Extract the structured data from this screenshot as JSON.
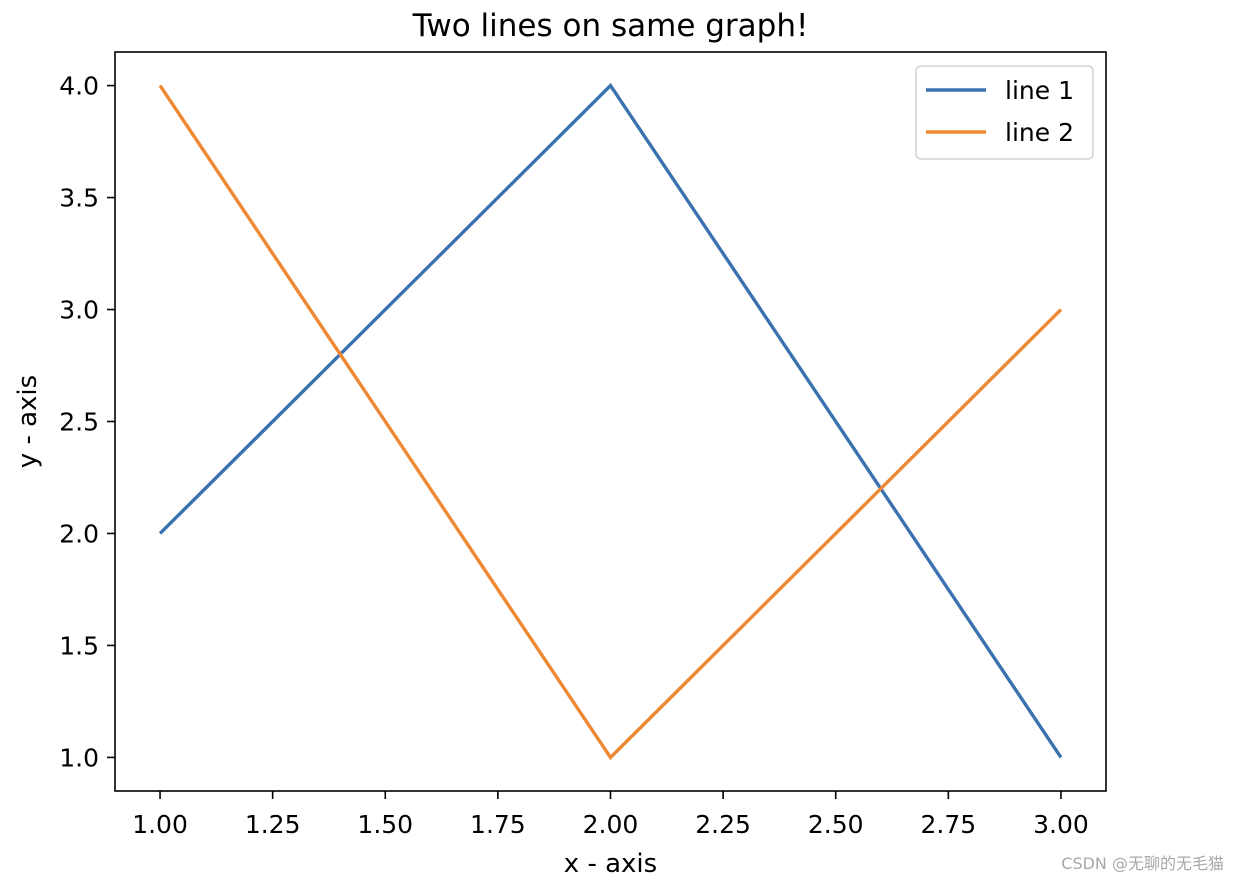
{
  "chart_data": {
    "type": "line",
    "title": "Two lines on same graph!",
    "xlabel": "x - axis",
    "ylabel": "y - axis",
    "xlim": [
      0.9,
      3.1
    ],
    "ylim": [
      0.85,
      4.15
    ],
    "x_ticks": [
      1.0,
      1.25,
      1.5,
      1.75,
      2.0,
      2.25,
      2.5,
      2.75,
      3.0
    ],
    "x_tick_labels": [
      "1.00",
      "1.25",
      "1.50",
      "1.75",
      "2.00",
      "2.25",
      "2.50",
      "2.75",
      "3.00"
    ],
    "y_ticks": [
      1.0,
      1.5,
      2.0,
      2.5,
      3.0,
      3.5,
      4.0
    ],
    "y_tick_labels": [
      "1.0",
      "1.5",
      "2.0",
      "2.5",
      "3.0",
      "3.5",
      "4.0"
    ],
    "grid": false,
    "legend_position": "top-right",
    "series": [
      {
        "name": "line 1",
        "color": "#3a72b0",
        "x": [
          1,
          2,
          3
        ],
        "y": [
          2,
          4,
          1
        ]
      },
      {
        "name": "line 2",
        "color": "#ee8833",
        "x": [
          1,
          2,
          3
        ],
        "y": [
          4,
          1,
          3
        ]
      }
    ]
  },
  "watermark": "CSDN @无聊的无毛猫"
}
